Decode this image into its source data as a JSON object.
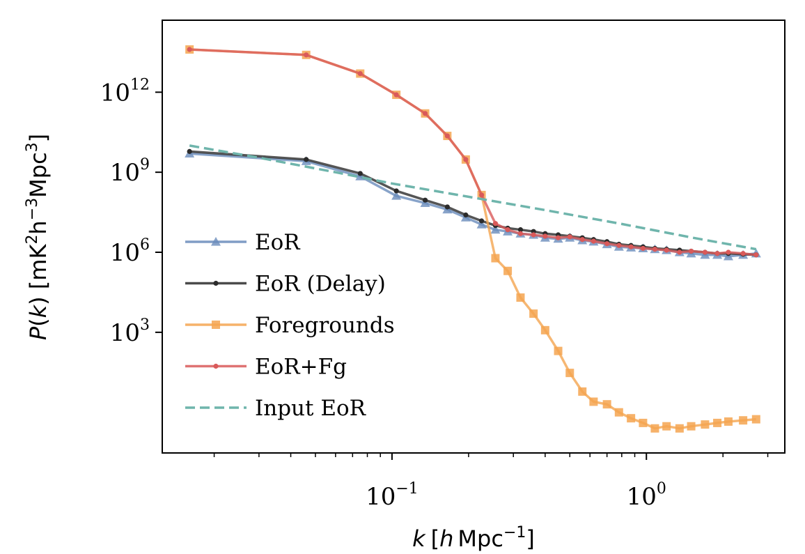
{
  "chart_data": {
    "type": "line",
    "xscale": "log",
    "yscale": "log",
    "xlim": [
      0.0125,
      3.5
    ],
    "ylim": [
      0.03,
      500000000000000
    ],
    "grid": false,
    "legend_position": "lower-left",
    "xlabel": {
      "k": "k",
      "bracket_open": "[",
      "h": "h",
      "unit": "Mpc",
      "exp": "−1",
      "bracket_close": "]"
    },
    "ylabel": {
      "P": "P",
      "k": "k",
      "units_open": " [mK",
      "e1": "2",
      "h": "h",
      "e2": "−3",
      "mpc": "Mpc",
      "e3": "3",
      "units_close": "]"
    },
    "xticks": [
      {
        "value": 0.1,
        "base": "10",
        "exp": "−1"
      },
      {
        "value": 1,
        "base": "10",
        "exp": "0"
      }
    ],
    "yticks": [
      {
        "value": 1000,
        "base": "10",
        "exp": "3"
      },
      {
        "value": 1000000,
        "base": "10",
        "exp": "6"
      },
      {
        "value": 1000000000,
        "base": "10",
        "exp": "9"
      },
      {
        "value": 1000000000000,
        "base": "10",
        "exp": "12"
      }
    ],
    "series": [
      {
        "name": "EoR",
        "color": "#6a8cbb",
        "marker": "triangle",
        "x": [
          0.016,
          0.046,
          0.075,
          0.104,
          0.135,
          0.165,
          0.195,
          0.225,
          0.255,
          0.285,
          0.32,
          0.36,
          0.4,
          0.45,
          0.5,
          0.56,
          0.62,
          0.7,
          0.78,
          0.87,
          0.97,
          1.08,
          1.2,
          1.35,
          1.5,
          1.7,
          1.9,
          2.1,
          2.4,
          2.7
        ],
        "y": [
          5000000000.0,
          2600000000.0,
          700000000.0,
          130000000.0,
          70000000.0,
          40000000.0,
          20000000.0,
          11000000.0,
          7000000.0,
          6000000.0,
          5000000.0,
          4500000.0,
          3500000.0,
          3200000.0,
          3500000.0,
          2800000.0,
          2500000.0,
          2000000.0,
          1600000.0,
          1500000.0,
          1400000.0,
          1300000.0,
          1200000.0,
          1000000.0,
          900000.0,
          800000.0,
          800000.0,
          700000.0,
          800000.0,
          900000.0
        ]
      },
      {
        "name": "EoR (Delay)",
        "color": "#2b2b2b",
        "marker": "dot",
        "x": [
          0.016,
          0.046,
          0.075,
          0.104,
          0.135,
          0.165,
          0.195,
          0.225,
          0.255,
          0.285,
          0.32,
          0.36,
          0.4,
          0.45,
          0.5,
          0.56,
          0.62,
          0.7,
          0.78,
          0.87,
          0.97,
          1.08,
          1.2,
          1.35,
          1.5,
          1.7,
          1.9,
          2.1,
          2.4,
          2.7
        ],
        "y": [
          6000000000.0,
          3000000000.0,
          900000000.0,
          200000000.0,
          90000000.0,
          50000000.0,
          25000000.0,
          15000000.0,
          10000000.0,
          8000000.0,
          7000000.0,
          6000000.0,
          5000000.0,
          4500000.0,
          4000000.0,
          3500000.0,
          3000000.0,
          2500000.0,
          2000000.0,
          1800000.0,
          1600000.0,
          1400000.0,
          1300000.0,
          1200000.0,
          1100000.0,
          1000000.0,
          900000.0,
          900000.0,
          850000.0,
          800000.0
        ]
      },
      {
        "name": "Foregrounds",
        "color": "#f4a550",
        "marker": "square",
        "x": [
          0.016,
          0.046,
          0.075,
          0.104,
          0.135,
          0.165,
          0.195,
          0.225,
          0.255,
          0.285,
          0.32,
          0.36,
          0.4,
          0.45,
          0.5,
          0.56,
          0.62,
          0.7,
          0.78,
          0.87,
          0.97,
          1.08,
          1.2,
          1.35,
          1.5,
          1.7,
          1.9,
          2.1,
          2.4,
          2.7
        ],
        "y": [
          40000000000000.0,
          25000000000000.0,
          5000000000000.0,
          800000000000.0,
          160000000000.0,
          23000000000.0,
          3000000000.0,
          140000000.0,
          600000.0,
          200000.0,
          20000.0,
          5000.0,
          1200.0,
          200.0,
          30,
          6,
          2.5,
          2,
          1,
          0.6,
          0.4,
          0.25,
          0.3,
          0.25,
          0.3,
          0.35,
          0.4,
          0.45,
          0.5,
          0.55
        ]
      },
      {
        "name": "EoR+Fg",
        "color": "#d95a5a",
        "marker": "dot",
        "x": [
          0.016,
          0.046,
          0.075,
          0.104,
          0.135,
          0.165,
          0.195,
          0.225,
          0.255,
          0.285,
          0.32,
          0.36,
          0.4,
          0.45,
          0.5,
          0.56,
          0.62,
          0.7,
          0.78,
          0.87,
          0.97,
          1.08,
          1.2,
          1.35,
          1.5,
          1.7,
          1.9,
          2.1,
          2.4,
          2.7
        ],
        "y": [
          40000000000000.0,
          25000000000000.0,
          5000000000000.0,
          800000000000.0,
          160000000000.0,
          23000000000.0,
          3000000000.0,
          140000000.0,
          12000000.0,
          7000000.0,
          5000000.0,
          4500000.0,
          4000000.0,
          3500000.0,
          3800000.0,
          3000000.0,
          2600000.0,
          2100000.0,
          1800000.0,
          1600000.0,
          1400000.0,
          1300000.0,
          1200000.0,
          1000000.0,
          1100000.0,
          1000000.0,
          900000.0,
          1000000.0,
          900000.0,
          800000.0
        ]
      },
      {
        "name": "Input EoR",
        "color": "#6fb5ac",
        "marker": "none",
        "dashed": true,
        "x": [
          0.016,
          0.03,
          0.06,
          0.1,
          0.2,
          0.4,
          0.8,
          1.5,
          2.7
        ],
        "y": [
          10000000000.0,
          3500000000.0,
          1000000000.0,
          380000000.0,
          120000000.0,
          38000000.0,
          11500000.0,
          3600000.0,
          1300000.0
        ]
      }
    ]
  }
}
